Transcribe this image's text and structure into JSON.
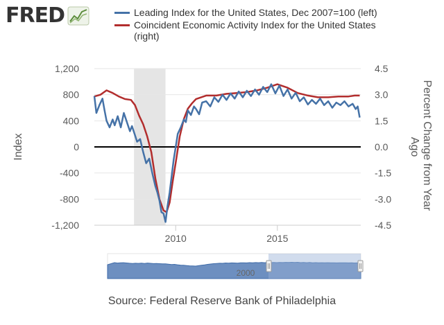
{
  "logo": {
    "text": "FRED",
    "badge_icon": "chart-trend-icon"
  },
  "legend": [
    {
      "label": "Leading Index for the United States, Dec 2007=100 (left)",
      "color": "#4572a7"
    },
    {
      "label": "Coincident Economic Activity Index for the United States (right)",
      "color": "#b22d2d"
    }
  ],
  "source": "Source: Federal Reserve Bank of Philadelphia",
  "chart_data": {
    "type": "line",
    "x_axis": {
      "ticks": [
        "2010",
        "2015"
      ],
      "range": [
        2006.0,
        2019.1
      ]
    },
    "y_left": {
      "label": "Index",
      "ticks": [
        "1,200",
        "800",
        "400",
        "0",
        "-400",
        "-800",
        "-1,200"
      ],
      "range": [
        -1200,
        1200
      ]
    },
    "y_right": {
      "label": "Percent Change from Year Ago",
      "ticks": [
        "4.5",
        "3.0",
        "1.5",
        "0.0",
        "-1.5",
        "-3.0",
        "-4.5"
      ],
      "range": [
        -4.5,
        4.5
      ]
    },
    "recession_band": [
      2007.95,
      2009.5
    ],
    "zero_line": true,
    "series": [
      {
        "name": "Leading Index for the United States, Dec 2007=100 (left)",
        "axis": "left",
        "color": "#4572a7",
        "x": [
          2006.0,
          2006.1,
          2006.25,
          2006.4,
          2006.5,
          2006.6,
          2006.75,
          2006.9,
          2007.0,
          2007.15,
          2007.3,
          2007.45,
          2007.6,
          2007.75,
          2007.85,
          2008.0,
          2008.1,
          2008.25,
          2008.4,
          2008.55,
          2008.7,
          2008.85,
          2009.0,
          2009.1,
          2009.2,
          2009.3,
          2009.4,
          2009.5,
          2009.6,
          2009.7,
          2009.8,
          2009.9,
          2010.0,
          2010.1,
          2010.25,
          2010.4,
          2010.5,
          2010.6,
          2010.75,
          2010.9,
          2011.0,
          2011.15,
          2011.3,
          2011.5,
          2011.7,
          2011.9,
          2012.1,
          2012.3,
          2012.5,
          2012.7,
          2012.9,
          2013.1,
          2013.3,
          2013.5,
          2013.7,
          2013.9,
          2014.1,
          2014.3,
          2014.5,
          2014.7,
          2014.9,
          2015.1,
          2015.3,
          2015.5,
          2015.7,
          2015.9,
          2016.1,
          2016.3,
          2016.5,
          2016.7,
          2016.9,
          2017.1,
          2017.3,
          2017.5,
          2017.7,
          2017.9,
          2018.1,
          2018.3,
          2018.5,
          2018.7,
          2018.85,
          2018.95,
          2019.05
        ],
        "values": [
          780,
          520,
          640,
          740,
          560,
          400,
          300,
          420,
          330,
          470,
          300,
          520,
          380,
          240,
          320,
          180,
          80,
          120,
          -80,
          -250,
          -180,
          -400,
          -600,
          -700,
          -820,
          -1000,
          -1020,
          -1150,
          -900,
          -700,
          -450,
          -200,
          0,
          200,
          300,
          420,
          380,
          560,
          490,
          620,
          580,
          500,
          680,
          700,
          620,
          760,
          690,
          800,
          720,
          820,
          740,
          850,
          760,
          860,
          780,
          880,
          800,
          920,
          840,
          960,
          820,
          940,
          780,
          880,
          740,
          830,
          700,
          760,
          650,
          720,
          660,
          740,
          640,
          700,
          600,
          680,
          640,
          700,
          620,
          660,
          580,
          620,
          450
        ]
      },
      {
        "name": "Coincident Economic Activity Index for the United States (right)",
        "axis": "right",
        "color": "#b22d2d",
        "x": [
          2006.0,
          2006.3,
          2006.6,
          2006.9,
          2007.2,
          2007.5,
          2007.8,
          2008.0,
          2008.2,
          2008.4,
          2008.6,
          2008.8,
          2009.0,
          2009.2,
          2009.4,
          2009.55,
          2009.7,
          2009.85,
          2010.0,
          2010.2,
          2010.4,
          2010.6,
          2010.8,
          2011.0,
          2011.5,
          2012.0,
          2012.5,
          2013.0,
          2013.5,
          2014.0,
          2014.5,
          2015.0,
          2015.5,
          2016.0,
          2016.5,
          2017.0,
          2017.5,
          2018.0,
          2018.5,
          2018.8,
          2019.05
        ],
        "values": [
          2.9,
          3.0,
          3.25,
          3.1,
          2.9,
          2.75,
          2.7,
          2.4,
          1.8,
          1.3,
          0.6,
          -0.3,
          -1.8,
          -3.0,
          -3.65,
          -3.75,
          -3.2,
          -2.0,
          -0.9,
          0.6,
          1.6,
          2.2,
          2.5,
          2.75,
          2.95,
          2.95,
          3.05,
          3.1,
          3.15,
          3.25,
          3.4,
          3.6,
          3.4,
          3.1,
          2.95,
          2.85,
          2.85,
          2.9,
          2.9,
          2.95,
          2.95
        ]
      }
    ],
    "navigator": {
      "ticks": [
        "2000"
      ]
    }
  }
}
